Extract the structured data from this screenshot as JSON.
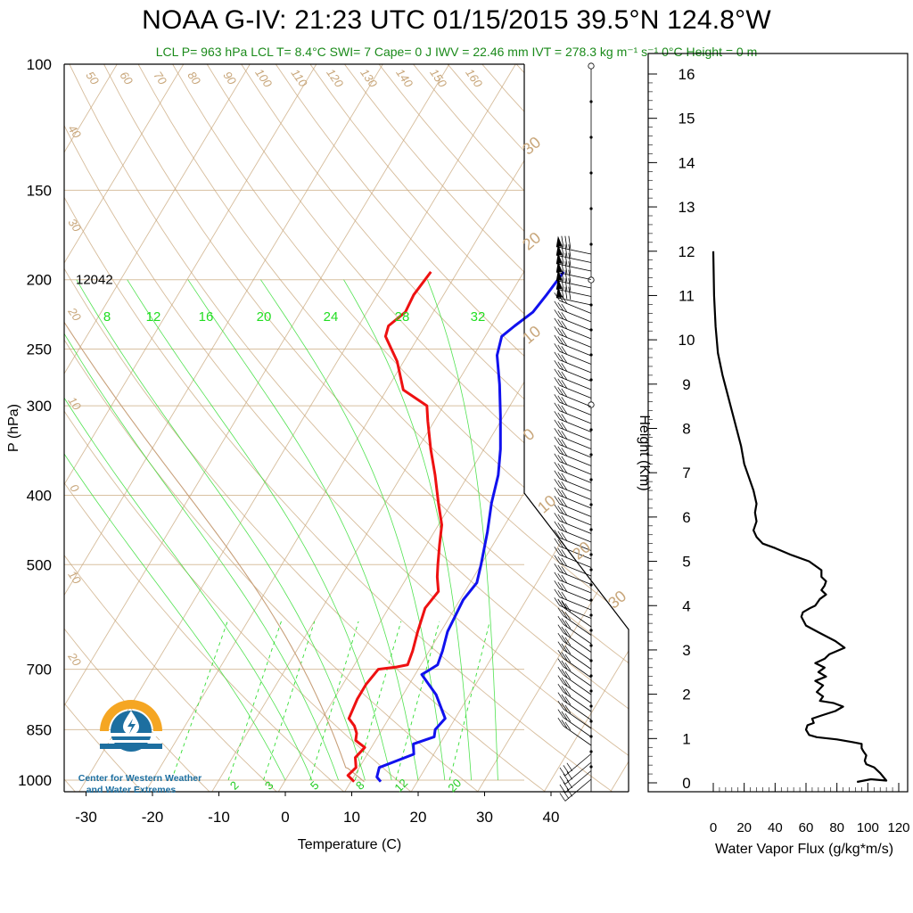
{
  "header": {
    "title": "NOAA G-IV: 21:23 UTC 01/15/2015  39.5°N 124.8°W",
    "subtitle": "LCL P= 963 hPa  LCL T= 8.4°C  SWI= 7  Cape= 0 J  IWV = 22.46 mm  IVT = 278.3 kg m⁻¹ s⁻¹  0°C Height = 0 m"
  },
  "colors": {
    "temperature": "#ee1111",
    "dewpoint": "#1111ee",
    "isotherm_adiabat": "#c8a67a",
    "mixing_ratio": "#33dd33",
    "subtitle": "#1a8a1a",
    "logo_orange": "#f5a623",
    "logo_blue": "#1d6fa0"
  },
  "logo": {
    "line1": "Center for Western Weather",
    "line2": "and Water Extremes"
  },
  "chart_data": [
    {
      "type": "line",
      "subtype": "skew-T log-P sounding",
      "xlabel": "Temperature (C)",
      "ylabel": "P (hPa)",
      "xticks": [
        -30,
        -20,
        -10,
        0,
        10,
        20,
        30,
        40
      ],
      "yticks": [
        100,
        150,
        200,
        250,
        300,
        400,
        500,
        700,
        850,
        1000
      ],
      "y_scale": "log",
      "height_label": "12042",
      "isotherm_labels": [
        "50",
        "60",
        "70",
        "80",
        "90",
        "100",
        "110",
        "120",
        "130",
        "140",
        "150",
        "160"
      ],
      "dry_adiabat_labels": [
        "40",
        "30",
        "20",
        "10",
        "0",
        "10",
        "20"
      ],
      "right_side_labels": [
        "30",
        "20",
        "10",
        "0",
        "10",
        "20",
        "30"
      ],
      "mixing_ratio_labels_top": [
        "8",
        "12",
        "16",
        "20",
        "24",
        "28",
        "32"
      ],
      "mixing_ratio_labels_bottom": [
        "2",
        "3",
        "5",
        "8",
        "12",
        "20"
      ],
      "series": [
        {
          "name": "Temperature",
          "points": [
            [
              -24.0,
              195
            ],
            [
              -24.5,
              210
            ],
            [
              -24.2,
              222
            ],
            [
              -25.5,
              232
            ],
            [
              -25.0,
              240
            ],
            [
              -21.0,
              260
            ],
            [
              -17.5,
              285
            ],
            [
              -12.5,
              300
            ],
            [
              -11.0,
              315
            ],
            [
              -8.0,
              345
            ],
            [
              -5.0,
              375
            ],
            [
              -2.0,
              410
            ],
            [
              0.5,
              440
            ],
            [
              2.0,
              470
            ],
            [
              3.5,
              500
            ],
            [
              4.5,
              520
            ],
            [
              6.0,
              545
            ],
            [
              5.5,
              575
            ],
            [
              6.5,
              620
            ],
            [
              7.5,
              660
            ],
            [
              8.0,
              690
            ],
            [
              6.5,
              695
            ],
            [
              4.0,
              700
            ],
            [
              3.5,
              735
            ],
            [
              3.5,
              770
            ],
            [
              4.0,
              820
            ],
            [
              5.5,
              840
            ],
            [
              6.5,
              860
            ],
            [
              7.0,
              880
            ],
            [
              9.0,
              900
            ],
            [
              8.5,
              930
            ],
            [
              9.5,
              960
            ],
            [
              9.0,
              985
            ],
            [
              10.5,
              1005
            ]
          ]
        },
        {
          "name": "Dewpoint",
          "points": [
            [
              -4.0,
              195
            ],
            [
              -4.5,
              210
            ],
            [
              -5.0,
              222
            ],
            [
              -6.5,
              232
            ],
            [
              -7.5,
              240
            ],
            [
              -6.5,
              255
            ],
            [
              -3.5,
              280
            ],
            [
              -0.5,
              310
            ],
            [
              2.5,
              345
            ],
            [
              4.5,
              375
            ],
            [
              6.0,
              410
            ],
            [
              8.0,
              450
            ],
            [
              10.0,
              500
            ],
            [
              11.0,
              530
            ],
            [
              10.5,
              560
            ],
            [
              11.0,
              620
            ],
            [
              12.0,
              660
            ],
            [
              12.5,
              690
            ],
            [
              11.5,
              705
            ],
            [
              11.0,
              712
            ],
            [
              15.0,
              760
            ],
            [
              18.5,
              820
            ],
            [
              18.0,
              850
            ],
            [
              18.5,
              870
            ],
            [
              16.0,
              890
            ],
            [
              17.0,
              920
            ],
            [
              13.0,
              960
            ],
            [
              13.5,
              990
            ],
            [
              14.5,
              1005
            ]
          ]
        }
      ]
    },
    {
      "type": "line",
      "subtype": "water vapor flux profile",
      "xlabel": "Water Vapor Flux (g/kg*m/s)",
      "ylabel": "Height (Km)",
      "xlim": [
        0,
        120
      ],
      "ylim": [
        0,
        16
      ],
      "xticks": [
        0,
        20,
        40,
        60,
        80,
        100,
        120
      ],
      "yticks": [
        0,
        1,
        2,
        3,
        4,
        5,
        6,
        7,
        8,
        9,
        10,
        11,
        12,
        13,
        14,
        15,
        16
      ],
      "series": [
        {
          "name": "Water Vapor Flux",
          "points": [
            [
              93,
              0.02
            ],
            [
              102,
              0.08
            ],
            [
              112,
              0.05
            ],
            [
              108,
              0.22
            ],
            [
              104,
              0.35
            ],
            [
              99,
              0.42
            ],
            [
              98,
              0.5
            ],
            [
              99,
              0.62
            ],
            [
              97,
              0.72
            ],
            [
              96,
              0.78
            ],
            [
              96,
              0.88
            ],
            [
              90,
              0.92
            ],
            [
              80,
              0.98
            ],
            [
              67,
              1.03
            ],
            [
              62,
              1.08
            ],
            [
              60,
              1.2
            ],
            [
              61,
              1.3
            ],
            [
              65,
              1.35
            ],
            [
              64,
              1.45
            ],
            [
              70,
              1.52
            ],
            [
              79,
              1.62
            ],
            [
              84,
              1.72
            ],
            [
              78,
              1.8
            ],
            [
              69,
              1.85
            ],
            [
              71,
              1.95
            ],
            [
              67,
              2.05
            ],
            [
              71,
              2.2
            ],
            [
              66,
              2.3
            ],
            [
              73,
              2.4
            ],
            [
              68,
              2.5
            ],
            [
              72,
              2.6
            ],
            [
              66,
              2.7
            ],
            [
              72,
              2.8
            ],
            [
              75,
              2.9
            ],
            [
              85,
              3.05
            ],
            [
              79,
              3.2
            ],
            [
              68,
              3.4
            ],
            [
              60,
              3.55
            ],
            [
              57,
              3.75
            ],
            [
              58,
              3.85
            ],
            [
              63,
              3.95
            ],
            [
              66,
              4.0
            ],
            [
              69,
              4.15
            ],
            [
              73,
              4.25
            ],
            [
              70,
              4.35
            ],
            [
              72,
              4.45
            ],
            [
              73,
              4.55
            ],
            [
              70,
              4.65
            ],
            [
              70,
              4.8
            ],
            [
              62,
              5.0
            ],
            [
              50,
              5.15
            ],
            [
              40,
              5.3
            ],
            [
              32,
              5.4
            ],
            [
              28,
              5.55
            ],
            [
              26,
              5.7
            ],
            [
              28,
              5.9
            ],
            [
              27,
              6.1
            ],
            [
              28,
              6.3
            ],
            [
              26,
              6.6
            ],
            [
              23,
              6.9
            ],
            [
              20,
              7.2
            ],
            [
              18,
              7.6
            ],
            [
              15,
              8.0
            ],
            [
              12,
              8.4
            ],
            [
              9,
              8.8
            ],
            [
              6,
              9.2
            ],
            [
              3,
              9.7
            ],
            [
              1.5,
              10.3
            ],
            [
              0.5,
              11.0
            ],
            [
              0,
              12.0
            ]
          ]
        }
      ]
    }
  ]
}
